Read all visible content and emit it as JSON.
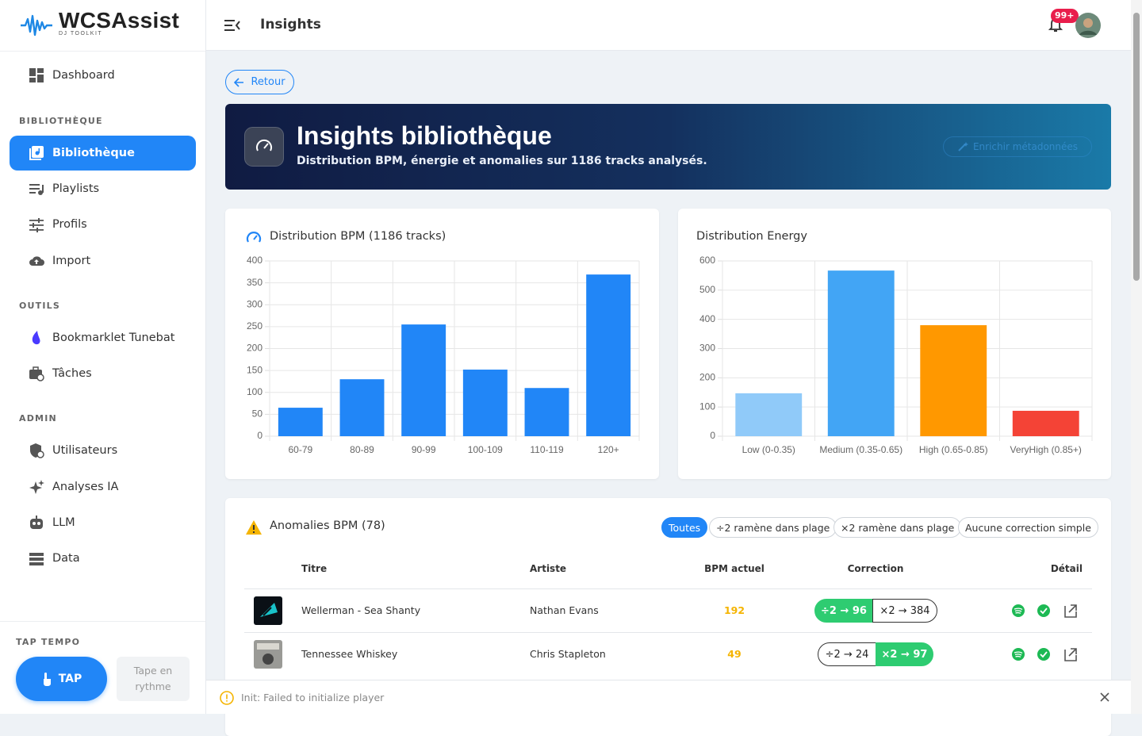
{
  "sidebar": {
    "brand": "WCSAssist",
    "tagline": "DJ TOOLKIT",
    "home": "Dashboard",
    "sections": [
      {
        "title": "BIBLIOTHÈQUE",
        "items": [
          "Bibliothèque",
          "Playlists",
          "Profils",
          "Import"
        ]
      },
      {
        "title": "OUTILS",
        "items": [
          "Bookmarklet Tunebat",
          "Tâches"
        ]
      },
      {
        "title": "ADMIN",
        "items": [
          "Utilisateurs",
          "Analyses IA",
          "LLM",
          "Data"
        ]
      }
    ],
    "tap_tempo": {
      "title": "TAP TEMPO",
      "button": "TAP",
      "hint": "Tape en rythme"
    }
  },
  "header": {
    "title": "Insights",
    "badge": "99+"
  },
  "back": "Retour",
  "hero": {
    "title": "Insights bibliothèque",
    "subtitle": "Distribution BPM, énergie et anomalies sur 1186 tracks analysés.",
    "action": "Enrichir métadonnées"
  },
  "chart_data": [
    {
      "type": "bar",
      "title": "Distribution BPM (1186 tracks)",
      "categories": [
        "60-79",
        "80-89",
        "90-99",
        "100-109",
        "110-119",
        "120+"
      ],
      "values": [
        65,
        130,
        255,
        152,
        110,
        369
      ],
      "color": "#2186f7",
      "ylim": [
        0,
        400
      ],
      "yticks": [
        0,
        50,
        100,
        150,
        200,
        250,
        300,
        350,
        400
      ],
      "grid": true
    },
    {
      "type": "bar",
      "title": "Distribution Energy",
      "categories": [
        "Low (0-0.35)",
        "Medium (0.35-0.65)",
        "High (0.65-0.85)",
        "VeryHigh (0.85+)"
      ],
      "values": [
        147,
        567,
        380,
        87
      ],
      "colors": [
        "#90caf9",
        "#42a5f5",
        "#ff9800",
        "#f44336"
      ],
      "ylim": [
        0,
        600
      ],
      "yticks": [
        0,
        100,
        200,
        300,
        400,
        500,
        600
      ],
      "grid": true
    }
  ],
  "anomalies": {
    "title": "Anomalies BPM (78)",
    "filters": [
      "Toutes",
      "÷2 ramène dans plage",
      "×2 ramène dans plage",
      "Aucune correction simple"
    ],
    "columns": [
      "Titre",
      "Artiste",
      "BPM actuel",
      "Correction",
      "Détail"
    ],
    "rows": [
      {
        "title": "Wellerman - Sea Shanty",
        "artist": "Nathan Evans",
        "bpm": 192,
        "corrections": [
          "÷2 → 96",
          "×2 → 384"
        ]
      },
      {
        "title": "Tennessee Whiskey",
        "artist": "Chris Stapleton",
        "bpm": 49,
        "corrections": [
          "÷2 → 24",
          "×2 → 97"
        ]
      }
    ]
  },
  "toast": "Init: Failed to initialize player"
}
